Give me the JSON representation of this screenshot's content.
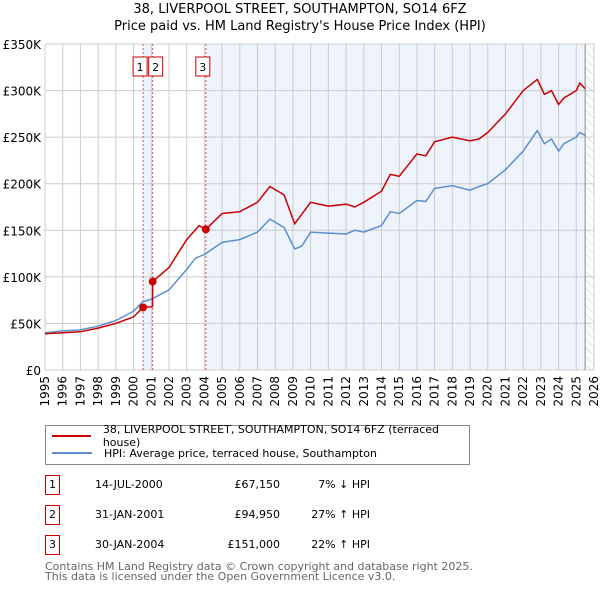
{
  "title_line1": "38, LIVERPOOL STREET, SOUTHAMPTON, SO14 6FZ",
  "title_line2": "Price paid vs. HM Land Registry's House Price Index (HPI)",
  "colors": {
    "property": "#cc0000",
    "hpi": "#5b8fd0",
    "shade": "#eef3fc",
    "grid": "#cccccc"
  },
  "chart_data": {
    "type": "line",
    "title": "38, LIVERPOOL STREET, SOUTHAMPTON, SO14 6FZ - Price paid vs. HM Land Registry's House Price Index (HPI)",
    "xlim": [
      1995,
      2026
    ],
    "ylim": [
      0,
      350000
    ],
    "x_ticks": [
      1995,
      1996,
      1997,
      1998,
      1999,
      2000,
      2001,
      2002,
      2003,
      2004,
      2005,
      2006,
      2007,
      2008,
      2009,
      2010,
      2011,
      2012,
      2013,
      2014,
      2015,
      2016,
      2017,
      2018,
      2019,
      2020,
      2021,
      2022,
      2023,
      2024,
      2025,
      2026
    ],
    "y_ticks": [
      0,
      50000,
      100000,
      150000,
      200000,
      250000,
      300000,
      350000
    ],
    "y_tick_labels": [
      "£0",
      "£50K",
      "£100K",
      "£150K",
      "£200K",
      "£250K",
      "£300K",
      "£350K"
    ],
    "grid": true,
    "forecast_hatch_from": 2025.5,
    "series": [
      {
        "name": "38, LIVERPOOL STREET, SOUTHAMPTON, SO14 6FZ (terraced house)",
        "color": "#cc0000",
        "x": [
          1995,
          1996,
          1997,
          1998,
          1999,
          2000,
          2000.54,
          2001.07,
          2001.08,
          2002,
          2003,
          2003.7,
          2004.08,
          2005,
          2006,
          2007,
          2007.7,
          2008.5,
          2009.1,
          2010,
          2011,
          2012,
          2012.5,
          2013,
          2014,
          2014.5,
          2015,
          2016,
          2016.5,
          2017,
          2018,
          2019,
          2019.5,
          2020,
          2021,
          2022,
          2022.8,
          2023.2,
          2023.6,
          2024,
          2024.3,
          2025,
          2025.2,
          2025.5
        ],
        "y": [
          39000,
          40000,
          41000,
          45000,
          50000,
          57000,
          67150,
          68000,
          94950,
          110000,
          140000,
          155000,
          151000,
          168000,
          170000,
          180000,
          197000,
          188000,
          157000,
          180000,
          176000,
          178000,
          175000,
          180000,
          192000,
          210000,
          208000,
          232000,
          230000,
          245000,
          250000,
          246000,
          248000,
          255000,
          275000,
          300000,
          312000,
          296000,
          300000,
          285000,
          292000,
          300000,
          308000,
          302000
        ]
      },
      {
        "name": "HPI: Average price, terraced house, Southampton",
        "color": "#5b8fd0",
        "x": [
          1995,
          1996,
          1997,
          1998,
          1999,
          2000,
          2000.5,
          2001,
          2002,
          2003,
          2003.5,
          2004,
          2005,
          2006,
          2007,
          2007.7,
          2008.5,
          2009.1,
          2009.5,
          2010,
          2011,
          2012,
          2012.5,
          2013,
          2014,
          2014.5,
          2015,
          2016,
          2016.5,
          2017,
          2018,
          2019,
          2019.5,
          2020,
          2021,
          2022,
          2022.8,
          2023.2,
          2023.6,
          2024,
          2024.3,
          2025,
          2025.2,
          2025.5
        ],
        "y": [
          40000,
          42000,
          43000,
          47000,
          53000,
          63000,
          73000,
          76000,
          86000,
          108000,
          120000,
          124000,
          137000,
          140000,
          148000,
          162000,
          153000,
          130000,
          133000,
          148000,
          147000,
          146000,
          150000,
          148000,
          155000,
          170000,
          168000,
          182000,
          181000,
          195000,
          198000,
          193000,
          197000,
          200000,
          215000,
          235000,
          257000,
          243000,
          248000,
          235000,
          243000,
          250000,
          255000,
          252000
        ]
      }
    ],
    "sales": [
      {
        "label": "1",
        "x": 2000.54,
        "price": 67150
      },
      {
        "label": "2",
        "x": 2001.08,
        "price": 94950
      },
      {
        "label": "3",
        "x": 2004.08,
        "price": 151000
      }
    ]
  },
  "legend": {
    "property": "38, LIVERPOOL STREET, SOUTHAMPTON, SO14 6FZ (terraced house)",
    "hpi": "HPI: Average price, terraced house, Southampton"
  },
  "transactions": [
    {
      "num": "1",
      "date": "14-JUL-2000",
      "price": "£67,150",
      "hpi": "7% ↓ HPI"
    },
    {
      "num": "2",
      "date": "31-JAN-2001",
      "price": "£94,950",
      "hpi": "27% ↑ HPI"
    },
    {
      "num": "3",
      "date": "30-JAN-2004",
      "price": "£151,000",
      "hpi": "22% ↑ HPI"
    }
  ],
  "footer": {
    "line1": "Contains HM Land Registry data © Crown copyright and database right 2025.",
    "line2": "This data is licensed under the Open Government Licence v3.0."
  }
}
